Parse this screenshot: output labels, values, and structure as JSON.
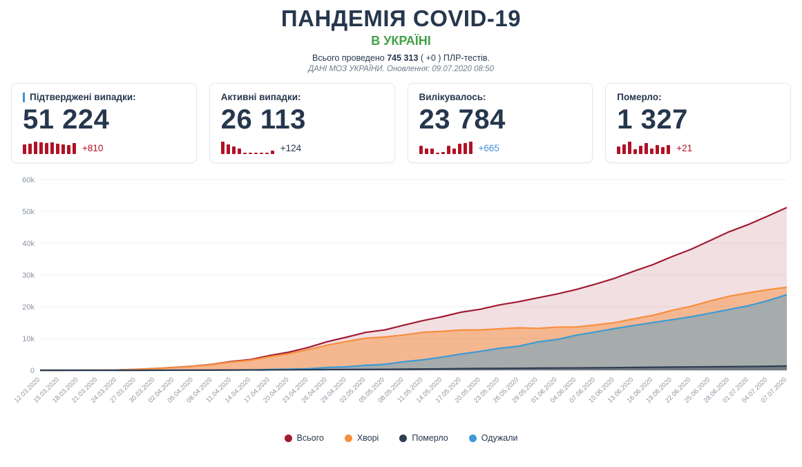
{
  "header": {
    "title": "ПАНДЕМІЯ COVID-19",
    "subtitle": "В УКРАЇНІ",
    "tests_prefix": "Всього проведено",
    "tests_total": "745 313",
    "tests_suffix": "( +0 ) ПЛР-тестів.",
    "update_line": "ДАНІ МОЗ УКРАЇНИ. Оновлення: 09.07.2020 08:50"
  },
  "spark_color": "#b11226",
  "cards": [
    {
      "label": "Підтверджені випадки:",
      "value": "51 224",
      "delta": "+810",
      "delta_color": "#b11226",
      "accent": true,
      "spark": [
        700,
        780,
        920,
        850,
        810,
        880,
        760,
        700,
        664,
        810
      ]
    },
    {
      "label": "Активні випадки:",
      "value": "26 113",
      "delta": "+124",
      "delta_color": "#26374d",
      "accent": false,
      "spark": [
        480,
        360,
        300,
        210,
        60,
        25,
        -15,
        40,
        -25,
        124
      ]
    },
    {
      "label": "Вилікувалось:",
      "value": "23 784",
      "delta": "+665",
      "delta_color": "#4a90d9",
      "accent": false,
      "spark": [
        430,
        300,
        280,
        90,
        120,
        450,
        300,
        550,
        600,
        665
      ]
    },
    {
      "label": "Померло:",
      "value": "1 327",
      "delta": "+21",
      "delta_color": "#b11226",
      "accent": false,
      "spark": [
        18,
        24,
        30,
        12,
        20,
        26,
        14,
        22,
        16,
        21
      ]
    }
  ],
  "chart_data": {
    "type": "area",
    "title": "",
    "xlabel": "",
    "ylabel": "",
    "ylim": [
      0,
      60000
    ],
    "ytick_step": 10000,
    "yticks": [
      "0",
      "10k",
      "20k",
      "30k",
      "40k",
      "50k",
      "60k"
    ],
    "grid": true,
    "legend_position": "bottom",
    "x": [
      "12.03.2020",
      "15.03.2020",
      "18.03.2020",
      "21.03.2020",
      "24.03.2020",
      "27.03.2020",
      "30.03.2020",
      "02.04.2020",
      "05.04.2020",
      "08.04.2020",
      "11.04.2020",
      "14.04.2020",
      "17.04.2020",
      "20.04.2020",
      "23.04.2020",
      "26.04.2020",
      "29.04.2020",
      "02.05.2020",
      "05.05.2020",
      "08.05.2020",
      "11.05.2020",
      "14.05.2020",
      "17.05.2020",
      "20.05.2020",
      "23.05.2020",
      "26.05.2020",
      "29.05.2020",
      "01.06.2020",
      "04.06.2020",
      "07.06.2020",
      "10.06.2020",
      "13.06.2020",
      "16.06.2020",
      "19.06.2020",
      "22.06.2020",
      "25.06.2020",
      "28.06.2020",
      "01.07.2020",
      "04.07.2020",
      "07.07.2020"
    ],
    "series": [
      {
        "name": "Всього",
        "color": "#a11a32",
        "fill": "rgba(161,26,50,0.14)",
        "values": [
          1,
          3,
          14,
          41,
          97,
          310,
          548,
          897,
          1308,
          1892,
          2777,
          3372,
          4662,
          5710,
          7170,
          9009,
          10406,
          11913,
          12697,
          14195,
          15648,
          16847,
          18291,
          19230,
          20580,
          21584,
          22811,
          24012,
          25411,
          27101,
          28934,
          31154,
          33234,
          35755,
          38074,
          40854,
          43628,
          45887,
          48500,
          51224
        ]
      },
      {
        "name": "Хворі",
        "color": "#f78f3d",
        "fill": "rgba(247,143,61,0.50)",
        "values": [
          1,
          2,
          12,
          37,
          91,
          300,
          527,
          856,
          1243,
          1790,
          2624,
          3155,
          4291,
          5212,
          6479,
          7925,
          9053,
          10077,
          10506,
          11128,
          11952,
          12248,
          12661,
          12711,
          13046,
          13365,
          13198,
          13604,
          13622,
          14259,
          14985,
          16183,
          17285,
          18849,
          20158,
          21800,
          23334,
          24385,
          25364,
          26113
        ]
      },
      {
        "name": "Померло",
        "color": "#2e3d51",
        "fill": "rgba(46,61,81,0.45)",
        "values": [
          0,
          1,
          2,
          3,
          3,
          5,
          13,
          22,
          37,
          57,
          74,
          98,
          125,
          151,
          187,
          220,
          250,
          288,
          316,
          361,
          408,
          456,
          514,
          564,
          605,
          644,
          679,
          718,
          747,
          788,
          833,
          889,
          943,
          1002,
          1051,
          1083,
          1147,
          1185,
          1249,
          1327
        ]
      },
      {
        "name": "Одужали",
        "color": "#3a9bd5",
        "fill": "rgba(58,155,213,0.42)",
        "values": [
          0,
          0,
          0,
          1,
          3,
          5,
          8,
          19,
          28,
          45,
          79,
          119,
          246,
          347,
          504,
          864,
          1103,
          1548,
          1875,
          2706,
          3288,
          4143,
          5116,
          5955,
          6929,
          7575,
          8934,
          9690,
          11042,
          12054,
          13116,
          14082,
          15006,
          15904,
          16865,
          17971,
          19147,
          20317,
          21887,
          23784
        ]
      }
    ]
  }
}
